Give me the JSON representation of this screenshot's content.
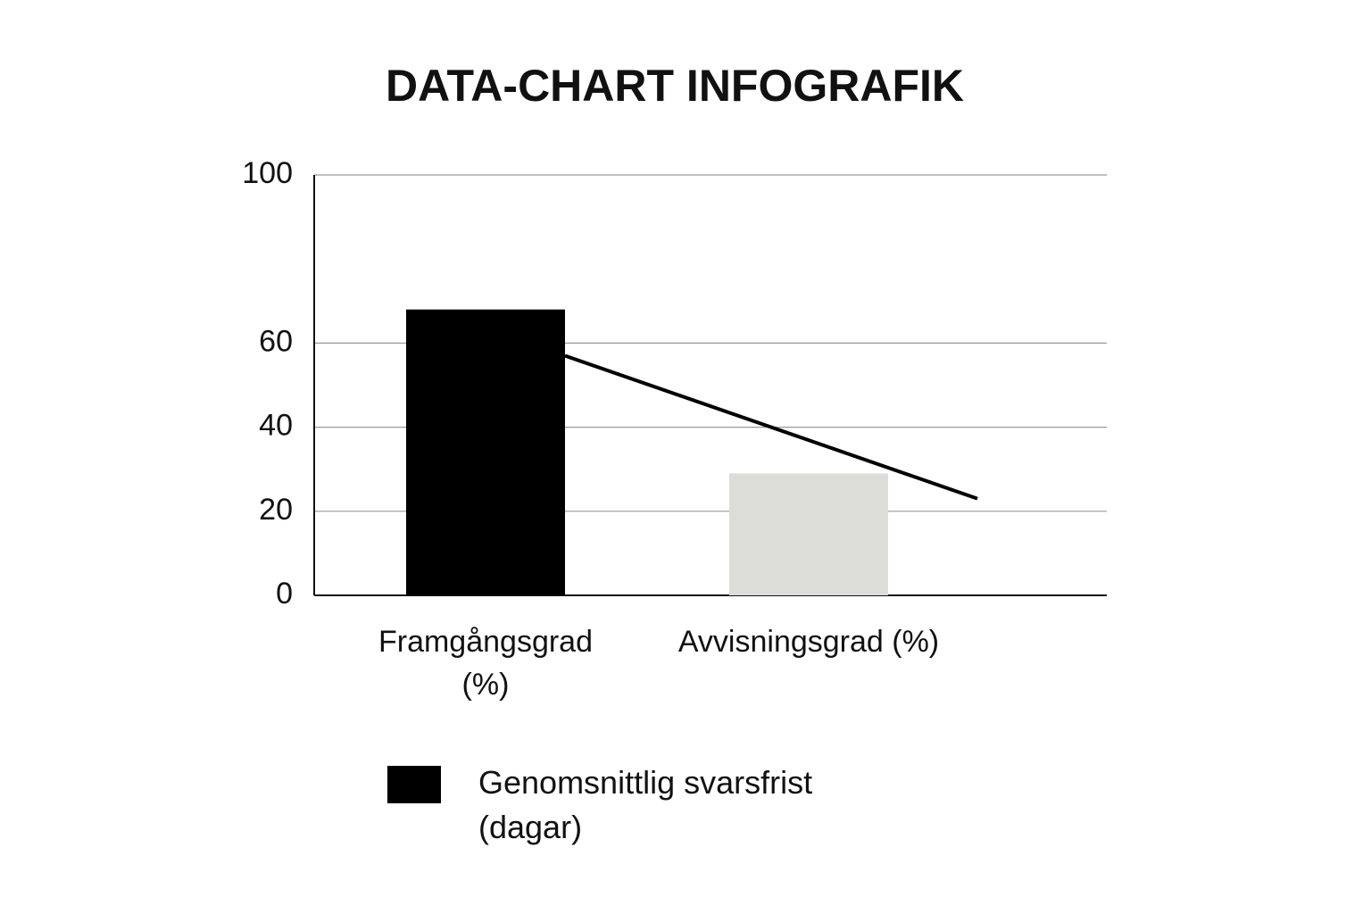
{
  "chart_data": {
    "type": "bar",
    "title": "DATA-CHART INFOGRAFIK",
    "categories": [
      "Framgångsgrad (%)",
      "Avvisningsgrad (%)"
    ],
    "values": [
      68,
      29
    ],
    "colors": [
      "#000000",
      "#dcdcd8"
    ],
    "series": [
      {
        "name": "Genomsnittlig svarsfrist (dagar)",
        "color": "#000000",
        "values": [
          57,
          23
        ]
      }
    ],
    "ylim": [
      0,
      100
    ],
    "yticks": [
      0,
      20,
      40,
      60,
      100
    ],
    "grid": true
  }
}
